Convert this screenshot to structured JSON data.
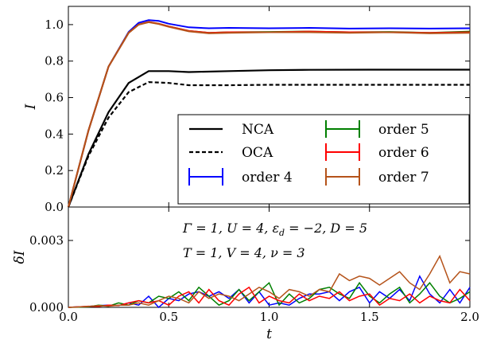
{
  "chart_data": [
    {
      "type": "line",
      "panel": "top",
      "ylabel": "I",
      "xlim": [
        0,
        2
      ],
      "ylim": [
        0,
        1.1
      ],
      "yticks": [
        "0.0",
        "0.2",
        "0.4",
        "0.6",
        "0.8",
        "1.0"
      ],
      "legend_position": "lower-right",
      "series": [
        {
          "name": "NCA",
          "color": "#000000",
          "style": "solid",
          "x": [
            0,
            0.1,
            0.2,
            0.3,
            0.4,
            0.5,
            0.6,
            0.8,
            1.0,
            1.2,
            1.5,
            2.0
          ],
          "y": [
            0,
            0.29,
            0.52,
            0.68,
            0.745,
            0.745,
            0.74,
            0.745,
            0.75,
            0.752,
            0.753,
            0.753
          ]
        },
        {
          "name": "OCA",
          "color": "#000000",
          "style": "dashed",
          "x": [
            0,
            0.1,
            0.2,
            0.3,
            0.4,
            0.5,
            0.6,
            0.8,
            1.0,
            1.5,
            2.0
          ],
          "y": [
            0,
            0.28,
            0.49,
            0.63,
            0.685,
            0.68,
            0.668,
            0.668,
            0.67,
            0.67,
            0.67
          ]
        },
        {
          "name": "order 4",
          "color": "#0000ff",
          "style": "solid",
          "x": [
            0,
            0.1,
            0.2,
            0.3,
            0.35,
            0.4,
            0.45,
            0.5,
            0.6,
            0.7,
            0.8,
            1.0,
            1.2,
            1.4,
            1.6,
            1.8,
            2.0
          ],
          "y": [
            0,
            0.42,
            0.77,
            0.96,
            1.01,
            1.025,
            1.02,
            1.005,
            0.985,
            0.98,
            0.982,
            0.98,
            0.982,
            0.978,
            0.98,
            0.978,
            0.98
          ]
        },
        {
          "name": "order 5",
          "color": "#008000",
          "style": "solid",
          "x": [
            0,
            0.1,
            0.2,
            0.3,
            0.35,
            0.4,
            0.45,
            0.5,
            0.6,
            0.7,
            0.8,
            1.0,
            1.2,
            1.4,
            1.6,
            1.8,
            2.0
          ],
          "y": [
            0,
            0.42,
            0.77,
            0.955,
            1.0,
            1.015,
            1.005,
            0.99,
            0.965,
            0.955,
            0.958,
            0.96,
            0.962,
            0.958,
            0.96,
            0.955,
            0.962
          ]
        },
        {
          "name": "order 6",
          "color": "#ff0000",
          "style": "solid",
          "x": [
            0,
            0.1,
            0.2,
            0.3,
            0.35,
            0.4,
            0.45,
            0.5,
            0.6,
            0.7,
            0.8,
            1.0,
            1.2,
            1.4,
            1.6,
            1.8,
            2.0
          ],
          "y": [
            0,
            0.42,
            0.77,
            0.955,
            1.0,
            1.015,
            1.005,
            0.99,
            0.965,
            0.955,
            0.958,
            0.958,
            0.962,
            0.958,
            0.958,
            0.955,
            0.958
          ]
        },
        {
          "name": "order 7",
          "color": "#b5531a",
          "style": "solid",
          "x": [
            0,
            0.1,
            0.2,
            0.3,
            0.35,
            0.4,
            0.45,
            0.5,
            0.6,
            0.7,
            0.8,
            1.0,
            1.2,
            1.4,
            1.6,
            1.8,
            2.0
          ],
          "y": [
            0,
            0.42,
            0.77,
            0.955,
            1.0,
            1.013,
            1.003,
            0.988,
            0.963,
            0.952,
            0.955,
            0.958,
            0.958,
            0.955,
            0.958,
            0.952,
            0.955
          ]
        }
      ]
    },
    {
      "type": "line",
      "panel": "bottom",
      "xlabel": "t",
      "ylabel": "δI",
      "xlim": [
        0,
        2
      ],
      "ylim": [
        0,
        0.0045
      ],
      "xticks": [
        "0.0",
        "0.5",
        "1.0",
        "1.5",
        "2.0"
      ],
      "yticks": [
        "0.000",
        "0.003"
      ],
      "annotations": [
        "Γ = 1,  U = 4,  ε",
        "d",
        " = −2,  D = 5",
        "T = 1,  V = 4,  ν = 3"
      ],
      "series": [
        {
          "name": "order 4",
          "color": "#0000ff",
          "x": [
            0,
            0.05,
            0.1,
            0.15,
            0.2,
            0.25,
            0.3,
            0.35,
            0.4,
            0.45,
            0.5,
            0.55,
            0.6,
            0.65,
            0.7,
            0.75,
            0.8,
            0.85,
            0.9,
            0.95,
            1.0,
            1.05,
            1.1,
            1.15,
            1.2,
            1.25,
            1.3,
            1.35,
            1.4,
            1.45,
            1.5,
            1.55,
            1.6,
            1.65,
            1.7,
            1.75,
            1.8,
            1.85,
            1.9,
            1.95,
            2.0
          ],
          "y": [
            0,
            2e-05,
            4e-05,
            8e-05,
            0.0001,
            8e-05,
            0.0002,
            0.0001,
            0.0005,
            0,
            0.0004,
            0.0003,
            0.0006,
            0.0007,
            0.0005,
            0.0007,
            0.0004,
            0.0008,
            0.0002,
            0.0007,
            0.0001,
            0.0002,
            0.0001,
            0.0004,
            0.0006,
            0.0006,
            0.0007,
            0.0003,
            0.0007,
            0.0009,
            0.0002,
            0.0007,
            0.0004,
            0.0008,
            0.0003,
            0.0014,
            0.0006,
            0.0002,
            0.0008,
            0.0002,
            0.0009
          ]
        },
        {
          "name": "order 5",
          "color": "#008000",
          "x": [
            0,
            0.05,
            0.1,
            0.15,
            0.2,
            0.25,
            0.3,
            0.35,
            0.4,
            0.45,
            0.5,
            0.55,
            0.6,
            0.65,
            0.7,
            0.75,
            0.8,
            0.85,
            0.9,
            0.95,
            1.0,
            1.05,
            1.1,
            1.15,
            1.2,
            1.25,
            1.3,
            1.35,
            1.4,
            1.45,
            1.5,
            1.55,
            1.6,
            1.65,
            1.7,
            1.75,
            1.8,
            1.85,
            1.9,
            1.95,
            2.0
          ],
          "y": [
            0,
            1e-05,
            3e-05,
            0.0001,
            5e-05,
            0.0002,
            0.0001,
            0.0003,
            0.0002,
            0.0005,
            0.0004,
            0.0007,
            0.0003,
            0.0009,
            0.0005,
            0.0001,
            0.0003,
            0.0008,
            0.0003,
            0.0007,
            0.0011,
            0.0001,
            0.0006,
            0.0002,
            0.0004,
            0.0008,
            0.0009,
            0.0006,
            0.0004,
            0.0011,
            0.0005,
            0.0002,
            0.0006,
            0.0009,
            0.0002,
            0.0006,
            0.0011,
            0.0005,
            0.0002,
            0.0004,
            0.0007
          ]
        },
        {
          "name": "order 6",
          "color": "#ff0000",
          "x": [
            0,
            0.05,
            0.1,
            0.15,
            0.2,
            0.25,
            0.3,
            0.35,
            0.4,
            0.45,
            0.5,
            0.55,
            0.6,
            0.65,
            0.7,
            0.75,
            0.8,
            0.85,
            0.9,
            0.95,
            1.0,
            1.05,
            1.1,
            1.15,
            1.2,
            1.25,
            1.3,
            1.35,
            1.4,
            1.45,
            1.5,
            1.55,
            1.6,
            1.65,
            1.7,
            1.75,
            1.8,
            1.85,
            1.9,
            1.95,
            2.0
          ],
          "y": [
            0,
            2e-05,
            5e-05,
            4e-05,
            0.0001,
            8e-05,
            0.0002,
            0.0003,
            0.0002,
            0.0003,
            0.0001,
            0.0005,
            0.0007,
            0.0002,
            0.0008,
            0.0003,
            0.0001,
            0.0006,
            0.0009,
            0.0002,
            0.0005,
            0.0003,
            0.0002,
            0.0006,
            0.0003,
            0.0005,
            0.0004,
            0.0007,
            0.0003,
            0.0005,
            0.0006,
            0.0001,
            0.0004,
            0.0003,
            0.0006,
            0.0002,
            0.0005,
            0.0003,
            0.0002,
            0.0008,
            0.0003
          ]
        },
        {
          "name": "order 7",
          "color": "#b5531a",
          "x": [
            0,
            0.05,
            0.1,
            0.15,
            0.2,
            0.25,
            0.3,
            0.35,
            0.4,
            0.45,
            0.5,
            0.55,
            0.6,
            0.65,
            0.7,
            0.75,
            0.8,
            0.85,
            0.9,
            0.95,
            1.0,
            1.05,
            1.1,
            1.15,
            1.2,
            1.25,
            1.3,
            1.35,
            1.4,
            1.45,
            1.5,
            1.55,
            1.6,
            1.65,
            1.7,
            1.75,
            1.8,
            1.85,
            1.9,
            1.95,
            2.0
          ],
          "y": [
            0,
            2e-05,
            4e-05,
            8e-05,
            5e-05,
            0.0001,
            0.0001,
            0.0002,
            0.0001,
            0.0003,
            0.0005,
            0.0004,
            0.0002,
            0.0007,
            0.0004,
            0.0006,
            0.0005,
            0.0003,
            0.0006,
            0.0009,
            0.0007,
            0.0004,
            0.0008,
            0.0007,
            0.0005,
            0.0008,
            0.0007,
            0.0015,
            0.0012,
            0.0014,
            0.0013,
            0.001,
            0.0013,
            0.0016,
            0.0011,
            0.0008,
            0.0015,
            0.0023,
            0.0011,
            0.0016,
            0.0015
          ]
        }
      ]
    }
  ]
}
